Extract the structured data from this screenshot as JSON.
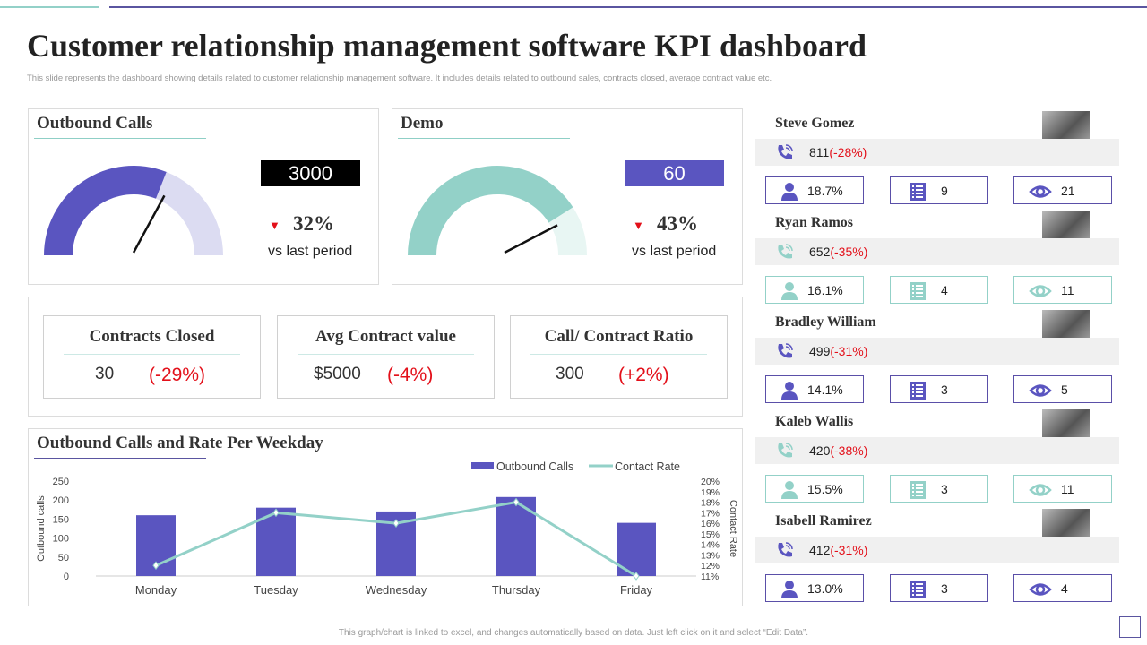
{
  "title": "Customer relationship management software KPI dashboard",
  "subtitle": "This slide represents the dashboard showing details related to customer relationship management software. It includes details related to outbound sales, contracts closed, average contract value etc.",
  "footer": "This graph/chart is linked to excel, and changes automatically based on data. Just left click on it and select “Edit Data”.",
  "colors": {
    "purple": "#5a55c0",
    "teal": "#93d1c8",
    "red": "#e3101a",
    "light_purple": "#dcdcf2"
  },
  "outbound_calls": {
    "title": "Outbound Calls",
    "value": "3000",
    "change": "32%",
    "change_label": "vs last period",
    "gauge_fraction": 0.62
  },
  "demo": {
    "title": "Demo",
    "value": "60",
    "change": "43%",
    "change_label": "vs last period",
    "gauge_fraction": 0.82
  },
  "kpis": [
    {
      "title": "Contracts Closed",
      "value": "30",
      "change": "(-29%)"
    },
    {
      "title": "Avg Contract value",
      "value": "$5000",
      "change": "(-4%)"
    },
    {
      "title": "Call/ Contract Ratio",
      "value": "300",
      "change": "(+2%)"
    }
  ],
  "people": [
    {
      "name": "Steve Gomez",
      "calls": "811",
      "calls_change": "(-28%)",
      "rate": "18.7%",
      "lists": "9",
      "views": "21",
      "accent": "#5a55c0"
    },
    {
      "name": "Ryan Ramos",
      "calls": "652",
      "calls_change": "(-35%)",
      "rate": "16.1%",
      "lists": "4",
      "views": "11",
      "accent": "#93d1c8"
    },
    {
      "name": "Bradley William",
      "calls": "499",
      "calls_change": "(-31%)",
      "rate": "14.1%",
      "lists": "3",
      "views": "5",
      "accent": "#5a55c0"
    },
    {
      "name": "Kaleb Wallis",
      "calls": "420",
      "calls_change": "(-38%)",
      "rate": "15.5%",
      "lists": "3",
      "views": "11",
      "accent": "#93d1c8"
    },
    {
      "name": "Isabell Ramirez",
      "calls": "412",
      "calls_change": "(-31%)",
      "rate": "13.0%",
      "lists": "3",
      "views": "4",
      "accent": "#5a55c0"
    }
  ],
  "chart_data": {
    "type": "bar+line",
    "title": "Outbound Calls and Rate Per Weekday",
    "categories": [
      "Monday",
      "Tuesday",
      "Wednesday",
      "Thursday",
      "Friday"
    ],
    "series": [
      {
        "name": "Outbound Calls",
        "type": "bar",
        "axis": "left",
        "values": [
          160,
          180,
          170,
          208,
          140
        ]
      },
      {
        "name": "Contact Rate",
        "type": "line",
        "axis": "right",
        "values": [
          12,
          17,
          16,
          18,
          11
        ]
      }
    ],
    "ylabel": "Outbound calls",
    "y2label": "Contact Rate",
    "ylim": [
      0,
      250
    ],
    "yticks": [
      "0",
      "50",
      "100",
      "150",
      "200",
      "250"
    ],
    "y2lim": [
      11,
      20
    ],
    "y2ticks": [
      "11%",
      "12%",
      "13%",
      "14%",
      "15%",
      "16%",
      "17%",
      "18%",
      "19%",
      "20%"
    ],
    "legend": "top-right",
    "grid": false
  }
}
